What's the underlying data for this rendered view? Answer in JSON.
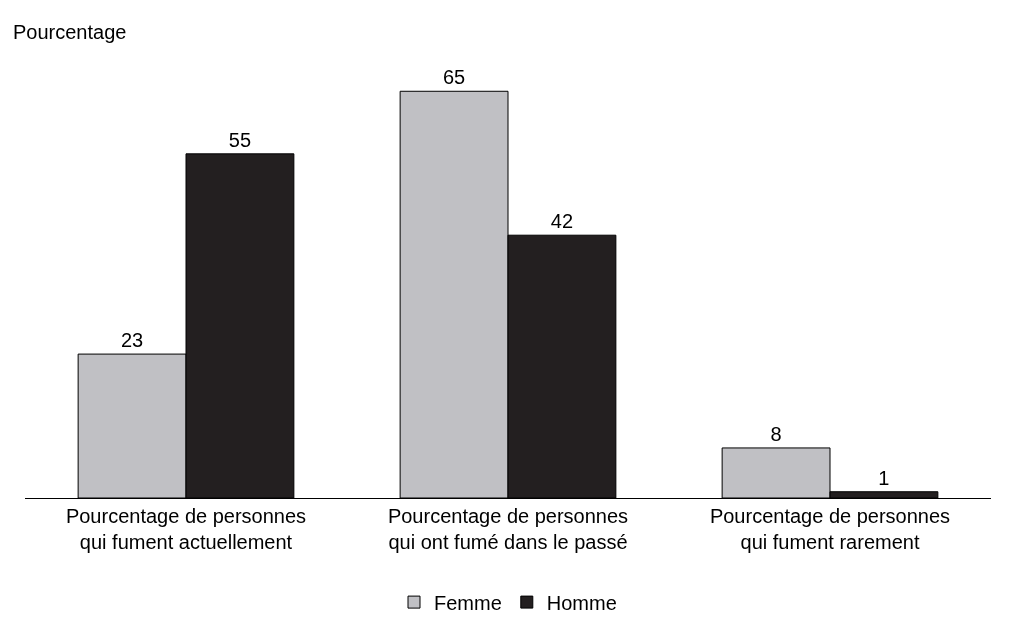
{
  "chart_data": {
    "type": "bar",
    "ylabel": "Pourcentage",
    "categories": [
      "Pourcentage de personnes\nqui fument actuellement",
      "Pourcentage de personnes\nqui ont fumé dans le passé",
      "Pourcentage de personnes\nqui fument rarement"
    ],
    "series": [
      {
        "name": "Femme",
        "color": "#c0c0c4",
        "values": [
          23,
          65,
          8
        ]
      },
      {
        "name": "Homme",
        "color": "#231f20",
        "values": [
          55,
          42,
          1
        ]
      }
    ],
    "data_labels": true,
    "legend": "bottom"
  }
}
